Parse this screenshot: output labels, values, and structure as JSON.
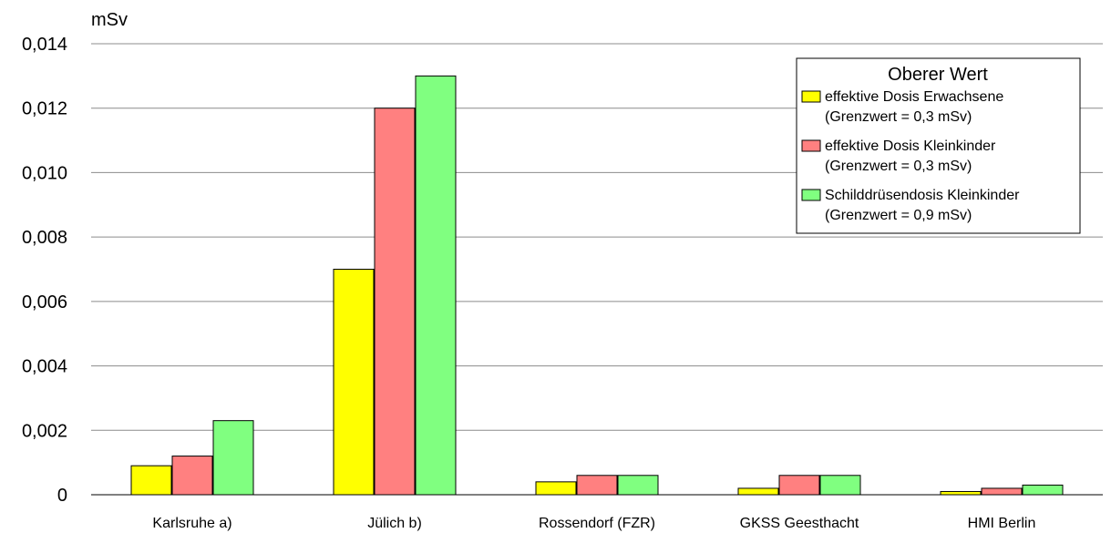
{
  "chart_data": {
    "type": "bar",
    "ylabel": "mSv",
    "xlabel": "",
    "ylim": [
      0,
      0.014
    ],
    "yticks": [
      "0",
      "0,002",
      "0,004",
      "0,006",
      "0,008",
      "0,010",
      "0,012",
      "0,014"
    ],
    "ytick_values": [
      0,
      0.002,
      0.004,
      0.006,
      0.008,
      0.01,
      0.012,
      0.014
    ],
    "grid": true,
    "categories": [
      "Karlsruhe a)",
      "Jülich b)",
      "Rossendorf (FZR)",
      "GKSS Geesthacht",
      "HMI Berlin"
    ],
    "series": [
      {
        "name": "effektive Dosis Erwachsene",
        "note": "(Grenzwert = 0,3 mSv)",
        "color": "#ffff00",
        "values": [
          0.0009,
          0.007,
          0.0004,
          0.0002,
          0.0001
        ]
      },
      {
        "name": "effektive Dosis Kleinkinder",
        "note": "(Grenzwert = 0,3 mSv)",
        "color": "#ff8080",
        "values": [
          0.0012,
          0.012,
          0.0006,
          0.0006,
          0.0002
        ]
      },
      {
        "name": "Schilddrüsendosis Kleinkinder",
        "note": "(Grenzwert = 0,9 mSv)",
        "color": "#80ff80",
        "values": [
          0.0023,
          0.013,
          0.0006,
          0.0006,
          0.0003
        ]
      }
    ],
    "legend": {
      "title": "Oberer Wert",
      "position": "top-right"
    }
  }
}
